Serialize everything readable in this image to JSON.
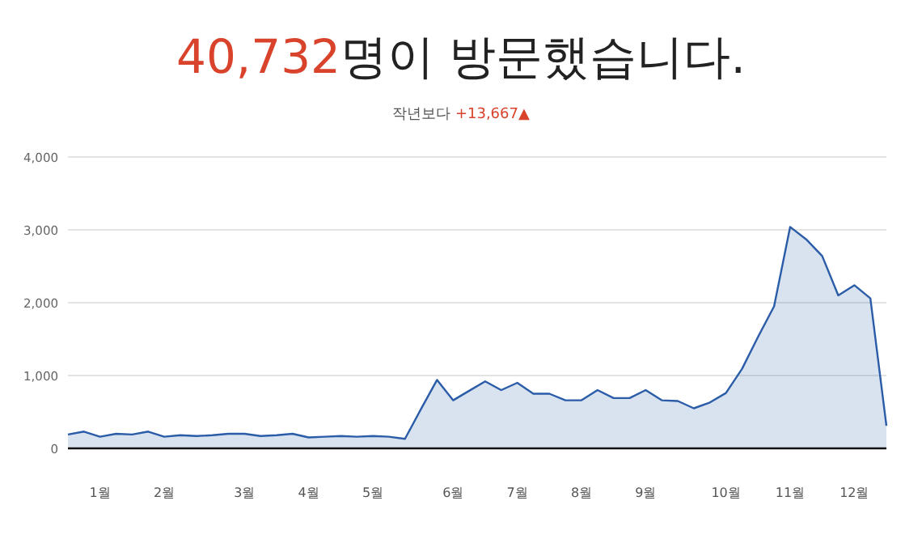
{
  "chart_data": {
    "type": "area",
    "title": "40,732명이 방문했습니다.",
    "subtitle": "작년보다 +13,667▲",
    "categories": [
      null,
      null,
      "1월",
      null,
      null,
      null,
      "2월",
      null,
      null,
      null,
      null,
      "3월",
      null,
      null,
      null,
      "4월",
      null,
      null,
      null,
      "5월",
      null,
      null,
      null,
      null,
      "6월",
      null,
      null,
      null,
      "7월",
      null,
      null,
      null,
      "8월",
      null,
      null,
      null,
      "9월",
      null,
      null,
      null,
      null,
      "10월",
      null,
      null,
      null,
      "11월",
      null,
      null,
      null,
      "12월",
      null,
      null
    ],
    "series": [
      {
        "color": "#2a5ca8",
        "values": [
          190,
          230,
          160,
          200,
          190,
          230,
          160,
          180,
          170,
          180,
          200,
          200,
          170,
          180,
          200,
          150,
          160,
          170,
          160,
          170,
          160,
          130,
          540,
          940,
          660,
          790,
          920,
          800,
          900,
          750,
          750,
          660,
          660,
          800,
          690,
          690,
          800,
          660,
          650,
          550,
          630,
          760,
          1090,
          1530,
          1950,
          3040,
          2870,
          2640,
          2100,
          2240,
          2060,
          310
        ]
      }
    ],
    "ylim": [
      0,
      4000
    ],
    "yticks": [
      0,
      {
        "value": 1000,
        "label": "1,000"
      },
      {
        "value": 2000,
        "label": "2,000"
      },
      {
        "value": 3000,
        "label": "3,000"
      },
      {
        "value": 4000,
        "label": "4,000"
      }
    ],
    "grid": "y",
    "marker": "none",
    "line_style": "solid"
  }
}
